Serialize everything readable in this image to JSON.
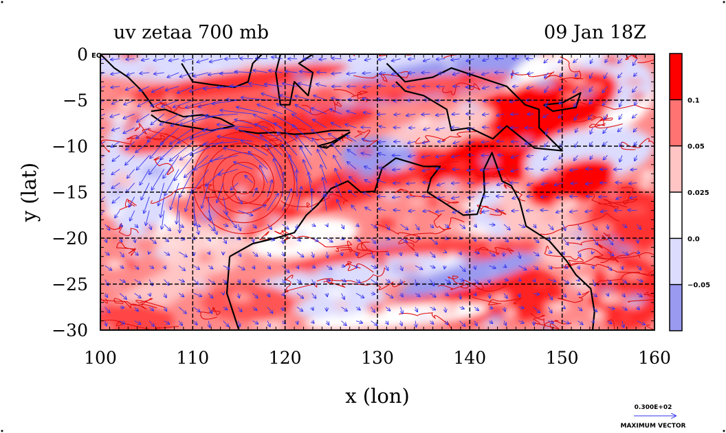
{
  "chart_data": {
    "type": "heatmap",
    "title": "uv zetaa 700 mb",
    "subtitle": "09 Jan 18Z",
    "xlabel": "x (lon)",
    "ylabel": "y (lat)",
    "xlim": [
      100,
      160
    ],
    "ylim": [
      -30,
      0
    ],
    "xticks": [
      "100",
      "110",
      "120",
      "130",
      "140",
      "150",
      "160"
    ],
    "yticks": [
      "0",
      "−5",
      "−10",
      "−15",
      "−20",
      "−25",
      "−30"
    ],
    "xtick_values": [
      100,
      110,
      120,
      130,
      140,
      150,
      160
    ],
    "ytick_values": [
      0,
      -5,
      -10,
      -15,
      -20,
      -25,
      -30
    ],
    "grid": true,
    "eq_label": "EQ",
    "colorbar": {
      "position": "right",
      "labels": [
        "0.1",
        "0.05",
        "0.025",
        "0.0",
        "−0.05"
      ],
      "levels": [
        0.1,
        0.05,
        0.025,
        0.0,
        -0.05
      ],
      "colors": [
        "#ff0000",
        "#ff7373",
        "#ffc4c4",
        "#ffffff",
        "#dcdcff",
        "#9a9af0"
      ]
    },
    "vector_legend": {
      "value_label": "0.300E+02",
      "caption": "MAXIMUM VECTOR"
    },
    "annotations": {
      "vortex_center": {
        "lon": 115.5,
        "lat": -14
      }
    }
  }
}
